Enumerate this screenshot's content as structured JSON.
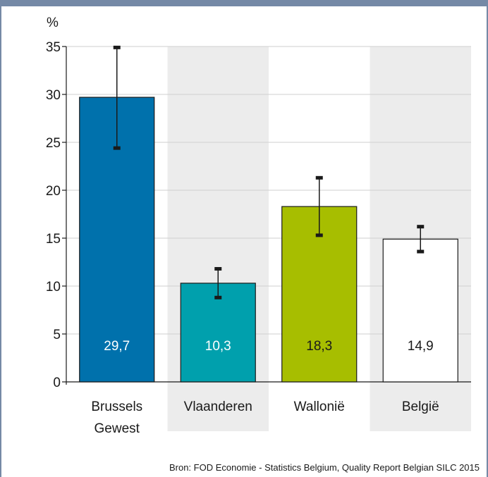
{
  "chart_data": {
    "type": "bar",
    "ylabel": "%",
    "ylim": [
      0,
      35
    ],
    "yticks": [
      0,
      5,
      10,
      15,
      20,
      25,
      30,
      35
    ],
    "grid": true,
    "categories": [
      [
        "Brussels",
        "Gewest"
      ],
      [
        "Vlaanderen"
      ],
      [
        "Wallonië"
      ],
      [
        "België"
      ]
    ],
    "values": [
      29.7,
      10.3,
      18.3,
      14.9
    ],
    "value_labels": [
      "29,7",
      "10,3",
      "18,3",
      "14,9"
    ],
    "error_low": [
      24.4,
      8.8,
      15.3,
      13.6
    ],
    "error_high": [
      34.9,
      11.8,
      21.3,
      16.2
    ],
    "bar_colors": [
      "#0071ac",
      "#00a0ad",
      "#a7be00",
      "#ffffff"
    ],
    "value_label_colors": [
      "#ffffff",
      "#ffffff",
      "#1a1a1a",
      "#1a1a1a"
    ],
    "band_color": "#ececec",
    "frame_color": "#7589a6"
  },
  "source": "Bron: FOD Economie - Statistics Belgium, Quality Report Belgian SILC 2015"
}
